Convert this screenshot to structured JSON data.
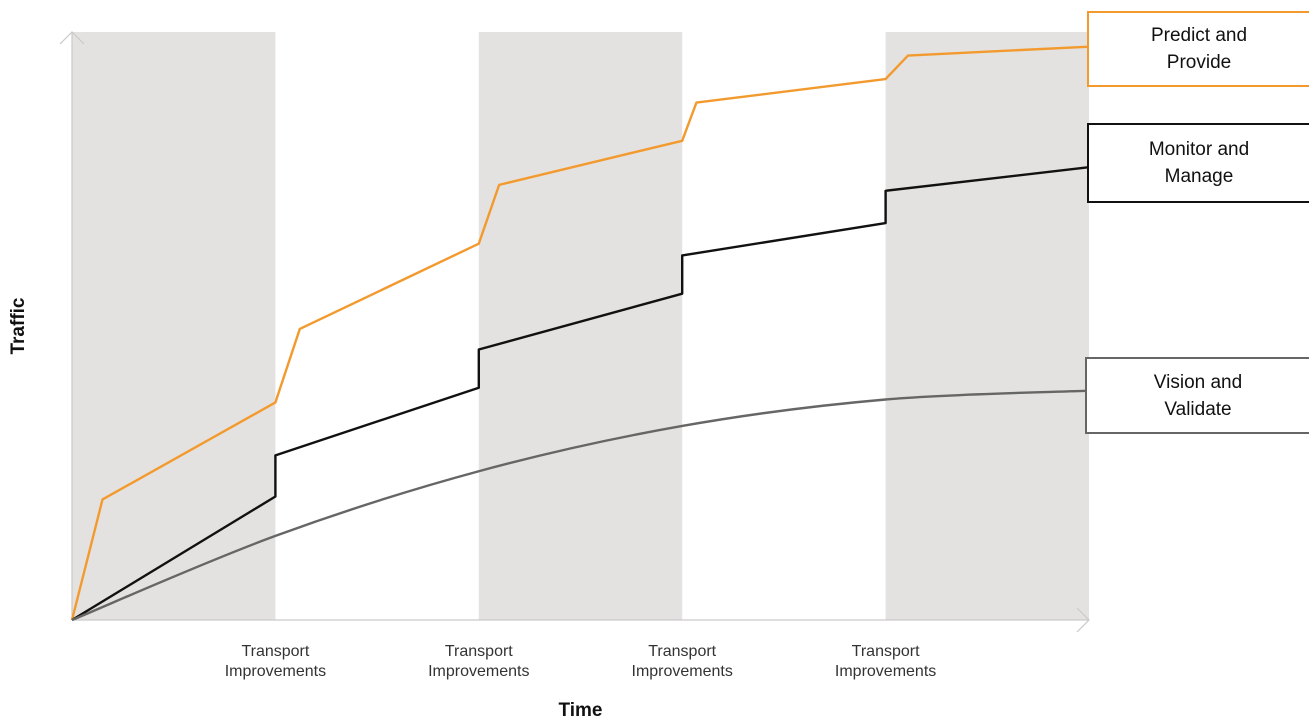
{
  "chart_data": {
    "type": "line",
    "title": "",
    "xlabel": "Time",
    "ylabel": "Traffic",
    "xlim": [
      0,
      5
    ],
    "ylim": [
      0,
      100
    ],
    "grid": false,
    "shaded_bands": [
      [
        0,
        1
      ],
      [
        2,
        3
      ],
      [
        4,
        5
      ]
    ],
    "x_tick_positions": [
      1,
      2,
      3,
      4
    ],
    "x_tick_labels": [
      "Transport\nImprovements",
      "Transport\nImprovements",
      "Transport\nImprovements",
      "Transport\nImprovements"
    ],
    "legend_placement": "right",
    "series": [
      {
        "name": "Predict and Provide",
        "color": "#F39A2E",
        "points": [
          [
            0,
            0
          ],
          [
            0.15,
            20.5
          ],
          [
            1,
            37
          ],
          [
            1.12,
            49.5
          ],
          [
            2,
            64
          ],
          [
            2.1,
            74
          ],
          [
            3,
            81.5
          ],
          [
            3.07,
            88
          ],
          [
            4,
            92
          ],
          [
            4.11,
            96
          ],
          [
            5,
            97.5
          ]
        ]
      },
      {
        "name": "Monitor and Manage",
        "color": "#111111",
        "points": [
          [
            0,
            0
          ],
          [
            1,
            21
          ],
          [
            1,
            28
          ],
          [
            2,
            39.5
          ],
          [
            2,
            46
          ],
          [
            3,
            55.5
          ],
          [
            3,
            62
          ],
          [
            4,
            67.5
          ],
          [
            4,
            73
          ],
          [
            5,
            77
          ]
        ]
      },
      {
        "name": "Vision and Validate",
        "color": "#666666",
        "curve": "smooth",
        "points": [
          [
            0,
            0
          ],
          [
            1,
            14.3
          ],
          [
            2,
            25.3
          ],
          [
            3,
            33
          ],
          [
            4,
            37.5
          ],
          [
            5,
            39
          ]
        ]
      }
    ]
  }
}
